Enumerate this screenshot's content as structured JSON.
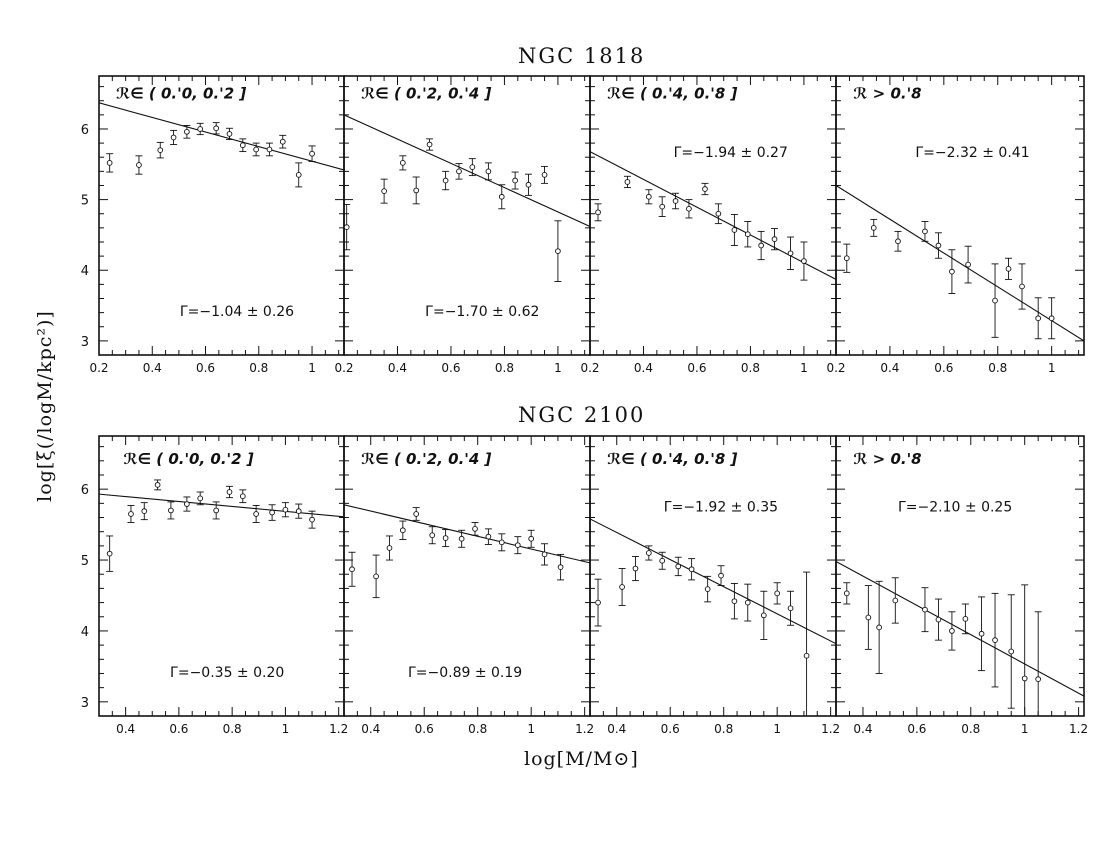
{
  "figure": {
    "ylabel": "log[ξ(/logM/kpc²)]",
    "xlabel": "log[M/M⊙]"
  },
  "chart_data": [
    {
      "type": "scatter",
      "title": "NGC 1818",
      "xlim": [
        0.2,
        1.12
      ],
      "ylim": [
        2.8,
        6.75
      ],
      "xticks": [
        0.2,
        0.4,
        0.6,
        0.8,
        1
      ],
      "yticks": [
        3,
        4,
        5,
        6
      ],
      "panels": [
        {
          "label": "ℛ∈ ( 0.'0, 0.'2 ]",
          "gamma_text": "Γ=−1.04  ±  0.26",
          "fit_line": [
            [
              0.2,
              6.37
            ],
            [
              1.12,
              5.42
            ]
          ],
          "points": [
            [
              0.24,
              5.52,
              0.13
            ],
            [
              0.35,
              5.49,
              0.13
            ],
            [
              0.43,
              5.7,
              0.11
            ],
            [
              0.48,
              5.88,
              0.1
            ],
            [
              0.53,
              5.96,
              0.09
            ],
            [
              0.58,
              6.0,
              0.08
            ],
            [
              0.64,
              6.01,
              0.08
            ],
            [
              0.69,
              5.93,
              0.08
            ],
            [
              0.74,
              5.77,
              0.09
            ],
            [
              0.79,
              5.71,
              0.09
            ],
            [
              0.84,
              5.71,
              0.09
            ],
            [
              0.89,
              5.82,
              0.09
            ],
            [
              0.95,
              5.35,
              0.17
            ],
            [
              1.0,
              5.65,
              0.11
            ]
          ]
        },
        {
          "label": "ℛ∈ ( 0.'2, 0.'4 ]",
          "gamma_text": "Γ=−1.70  ±  0.62",
          "fit_line": [
            [
              0.2,
              6.2
            ],
            [
              1.12,
              4.62
            ]
          ],
          "points": [
            [
              0.21,
              4.61,
              0.32
            ],
            [
              0.35,
              5.12,
              0.17
            ],
            [
              0.42,
              5.52,
              0.1
            ],
            [
              0.47,
              5.13,
              0.19
            ],
            [
              0.52,
              5.78,
              0.08
            ],
            [
              0.58,
              5.27,
              0.13
            ],
            [
              0.63,
              5.4,
              0.11
            ],
            [
              0.68,
              5.46,
              0.12
            ],
            [
              0.74,
              5.4,
              0.12
            ],
            [
              0.79,
              5.04,
              0.17
            ],
            [
              0.84,
              5.27,
              0.12
            ],
            [
              0.89,
              5.21,
              0.15
            ],
            [
              0.95,
              5.35,
              0.12
            ],
            [
              1.0,
              4.27,
              0.43
            ]
          ]
        },
        {
          "label": "ℛ∈ ( 0.'4, 0.'8 ]",
          "gamma_text": "Γ=−1.94  ±  0.27",
          "fit_line": [
            [
              0.2,
              5.68
            ],
            [
              1.12,
              3.87
            ]
          ],
          "points": [
            [
              0.23,
              4.82,
              0.12
            ],
            [
              0.34,
              5.25,
              0.08
            ],
            [
              0.42,
              5.04,
              0.1
            ],
            [
              0.47,
              4.9,
              0.14
            ],
            [
              0.52,
              4.98,
              0.11
            ],
            [
              0.57,
              4.87,
              0.13
            ],
            [
              0.63,
              5.15,
              0.08
            ],
            [
              0.68,
              4.8,
              0.14
            ],
            [
              0.74,
              4.57,
              0.22
            ],
            [
              0.79,
              4.51,
              0.18
            ],
            [
              0.84,
              4.35,
              0.2
            ],
            [
              0.89,
              4.44,
              0.15
            ],
            [
              0.95,
              4.24,
              0.23
            ],
            [
              1.0,
              4.13,
              0.27
            ]
          ]
        },
        {
          "label": "ℛ > 0.'8",
          "gamma_text": "Γ=−2.32  ±  0.41",
          "fit_line": [
            [
              0.2,
              5.2
            ],
            [
              1.12,
              3.0
            ]
          ],
          "points": [
            [
              0.24,
              4.17,
              0.2
            ],
            [
              0.34,
              4.6,
              0.12
            ],
            [
              0.43,
              4.41,
              0.14
            ],
            [
              0.53,
              4.55,
              0.14
            ],
            [
              0.58,
              4.35,
              0.18
            ],
            [
              0.63,
              3.98,
              0.31
            ],
            [
              0.69,
              4.08,
              0.26
            ],
            [
              0.79,
              3.57,
              0.52
            ],
            [
              0.84,
              4.02,
              0.15
            ],
            [
              0.89,
              3.77,
              0.32
            ],
            [
              0.95,
              3.32,
              0.29
            ],
            [
              1.0,
              3.32,
              0.29
            ]
          ]
        }
      ]
    },
    {
      "type": "scatter",
      "title": "NGC 2100",
      "xlim": [
        0.3,
        1.22
      ],
      "ylim": [
        2.8,
        6.75
      ],
      "xticks": [
        0.4,
        0.6,
        0.8,
        1,
        1.2
      ],
      "yticks": [
        3,
        4,
        5,
        6
      ],
      "panels": [
        {
          "label": "ℛ∈   ( 0.'0, 0.'2 ]",
          "gamma_text": "Γ=−0.35  ±  0.20",
          "fit_line": [
            [
              0.3,
              5.93
            ],
            [
              1.22,
              5.61
            ]
          ],
          "points": [
            [
              0.34,
              5.09,
              0.25
            ],
            [
              0.42,
              5.65,
              0.12
            ],
            [
              0.47,
              5.69,
              0.12
            ],
            [
              0.52,
              6.06,
              0.07
            ],
            [
              0.57,
              5.7,
              0.12
            ],
            [
              0.63,
              5.79,
              0.1
            ],
            [
              0.68,
              5.87,
              0.09
            ],
            [
              0.74,
              5.7,
              0.12
            ],
            [
              0.79,
              5.96,
              0.08
            ],
            [
              0.84,
              5.9,
              0.09
            ],
            [
              0.89,
              5.65,
              0.12
            ],
            [
              0.95,
              5.67,
              0.11
            ],
            [
              1.0,
              5.71,
              0.1
            ],
            [
              1.05,
              5.69,
              0.1
            ],
            [
              1.1,
              5.57,
              0.12
            ]
          ]
        },
        {
          "label": "ℛ∈   ( 0.'2, 0.'4 ]",
          "gamma_text": "Γ=−0.89  ±  0.19",
          "fit_line": [
            [
              0.3,
              5.78
            ],
            [
              1.22,
              4.96
            ]
          ],
          "points": [
            [
              0.33,
              4.87,
              0.24
            ],
            [
              0.42,
              4.77,
              0.3
            ],
            [
              0.47,
              5.17,
              0.17
            ],
            [
              0.52,
              5.42,
              0.13
            ],
            [
              0.57,
              5.65,
              0.09
            ],
            [
              0.63,
              5.35,
              0.12
            ],
            [
              0.68,
              5.31,
              0.12
            ],
            [
              0.74,
              5.3,
              0.12
            ],
            [
              0.79,
              5.44,
              0.09
            ],
            [
              0.84,
              5.33,
              0.11
            ],
            [
              0.89,
              5.25,
              0.12
            ],
            [
              0.95,
              5.21,
              0.12
            ],
            [
              1.0,
              5.3,
              0.12
            ],
            [
              1.05,
              5.08,
              0.15
            ],
            [
              1.11,
              4.9,
              0.18
            ]
          ]
        },
        {
          "label": "ℛ∈   ( 0.'4, 0.'8 ]",
          "gamma_text": "Γ=−1.92  ±  0.35",
          "fit_line": [
            [
              0.3,
              5.58
            ],
            [
              1.22,
              3.82
            ]
          ],
          "points": [
            [
              0.33,
              4.4,
              0.33
            ],
            [
              0.42,
              4.62,
              0.26
            ],
            [
              0.47,
              4.88,
              0.17
            ],
            [
              0.52,
              5.1,
              0.1
            ],
            [
              0.57,
              4.99,
              0.12
            ],
            [
              0.63,
              4.91,
              0.13
            ],
            [
              0.68,
              4.87,
              0.15
            ],
            [
              0.74,
              4.59,
              0.18
            ],
            [
              0.79,
              4.78,
              0.14
            ],
            [
              0.84,
              4.42,
              0.25
            ],
            [
              0.89,
              4.4,
              0.26
            ],
            [
              0.95,
              4.22,
              0.34
            ],
            [
              1.0,
              4.53,
              0.15
            ],
            [
              1.05,
              4.32,
              0.24
            ],
            [
              1.11,
              3.65,
              1.18
            ]
          ]
        },
        {
          "label": "ℛ > 0.'8",
          "gamma_text": "Γ=−2.10  ±  0.25",
          "fit_line": [
            [
              0.3,
              4.98
            ],
            [
              1.22,
              3.08
            ]
          ],
          "points": [
            [
              0.34,
              4.53,
              0.15
            ],
            [
              0.42,
              4.19,
              0.45
            ],
            [
              0.46,
              4.05,
              0.65
            ],
            [
              0.52,
              4.43,
              0.32
            ],
            [
              0.63,
              4.3,
              0.31
            ],
            [
              0.68,
              4.16,
              0.29
            ],
            [
              0.73,
              4.0,
              0.27
            ],
            [
              0.78,
              4.17,
              0.21
            ],
            [
              0.84,
              3.96,
              0.52
            ],
            [
              0.89,
              3.87,
              0.66
            ],
            [
              0.95,
              3.71,
              0.8
            ],
            [
              1.0,
              3.33,
              1.32
            ],
            [
              1.05,
              3.32,
              0.95
            ]
          ]
        }
      ]
    }
  ]
}
